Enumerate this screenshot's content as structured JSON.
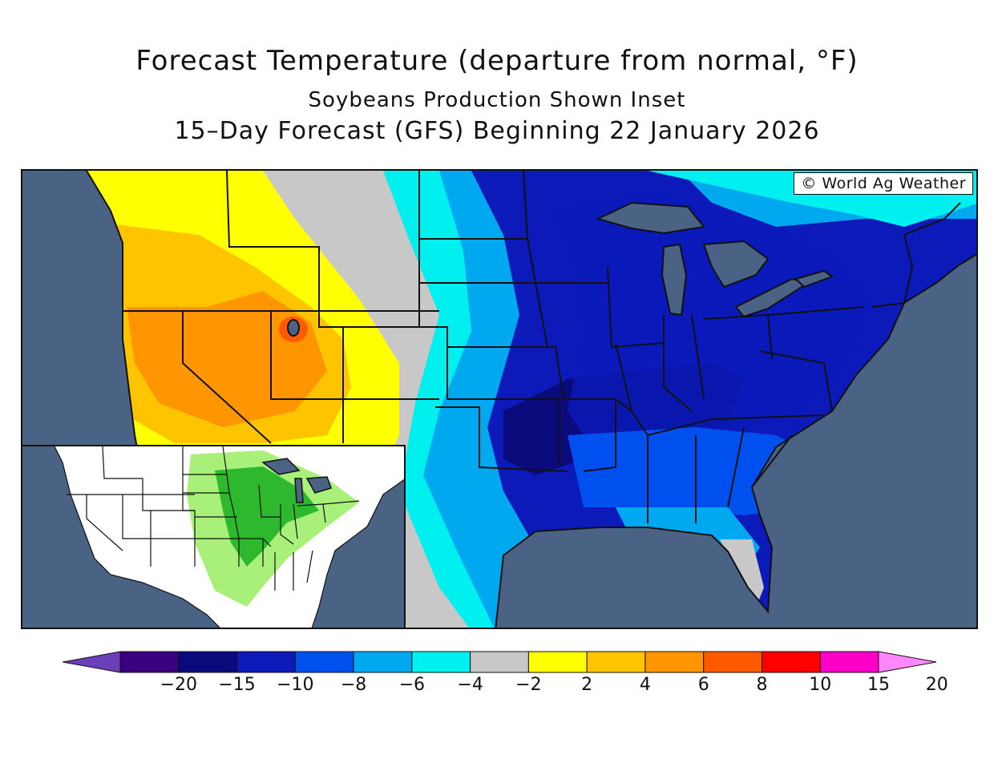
{
  "title": "Forecast Temperature (departure from normal, °F)",
  "subtitle": "Soybeans Production Shown Inset",
  "period": "15–Day Forecast (GFS) Beginning 22 January 2026",
  "copyright": "© World Ag Weather",
  "inset_label": "Soybeans Production",
  "legend": {
    "colors": [
      "#6a3fb8",
      "#3a0080",
      "#0b0a7c",
      "#0b1ab8",
      "#0050f0",
      "#00a8f0",
      "#00f0f0",
      "#c8c8c8",
      "#ffff00",
      "#ffc400",
      "#ff9500",
      "#ff5a00",
      "#ff0000",
      "#ff00c8",
      "#ff88ff"
    ],
    "ticks": [
      "−20",
      "−15",
      "−10",
      "−8",
      "−6",
      "−4",
      "−2",
      "2",
      "4",
      "6",
      "8",
      "10",
      "15",
      "20"
    ]
  },
  "colors": {
    "ocean": "#4a6284",
    "inset_land": "#ffffff",
    "soy_high": "#2db82d",
    "soy_low": "#a8f07a"
  }
}
